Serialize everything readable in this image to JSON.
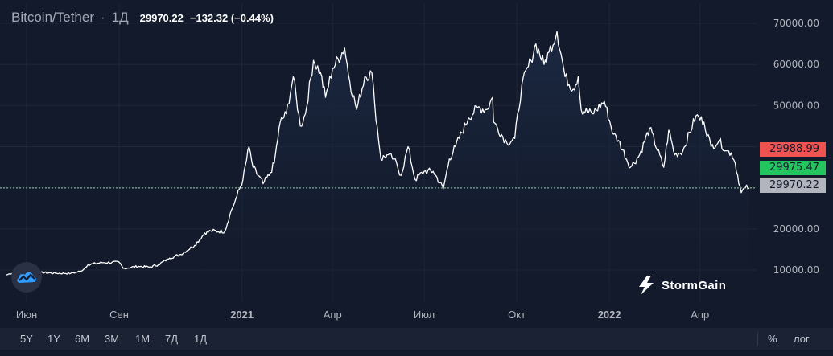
{
  "header": {
    "symbol": "Bitcoin/Tether",
    "interval": "1Д",
    "price": "29970.22",
    "change": "−132.32 (−0.44%)"
  },
  "price_tags": [
    {
      "label": "29988.99",
      "value": 29988.99,
      "color": "#ef5350"
    },
    {
      "label": "29975.47",
      "value": 29975.47,
      "color": "#22c55e"
    },
    {
      "label": "29970.22",
      "value": 29970.22,
      "color": "#b2b5be"
    }
  ],
  "branding": {
    "name": "StormGain"
  },
  "toolbar": {
    "ranges": [
      "5Y",
      "1Y",
      "6M",
      "3M",
      "1M",
      "7Д",
      "1Д"
    ],
    "percent_label": "%",
    "log_label": "лог"
  },
  "colors": {
    "background": "#131a2b",
    "line": "#ffffff",
    "area_top": "#1c2a44",
    "area_bottom": "#131a2b",
    "grid": "#1f2739",
    "axis_text": "#b2b5be",
    "last_price_line": "#8fd0a8"
  },
  "chart_data": {
    "type": "area",
    "title": "Bitcoin/Tether",
    "xlabel": "",
    "ylabel": "",
    "ylim": [
      0,
      72000
    ],
    "grid": true,
    "legend": "none",
    "y_ticks": [
      10000,
      20000,
      30000,
      40000,
      50000,
      60000,
      70000
    ],
    "y_tick_labels": [
      "10000.00",
      "20000.00",
      "30000.00",
      "40000.00",
      "50000.00",
      "60000.00",
      "70000.00"
    ],
    "x_ticks": [
      {
        "date": "2020-06-01",
        "label": "Июн",
        "bold": false
      },
      {
        "date": "2020-09-01",
        "label": "Сен",
        "bold": false
      },
      {
        "date": "2021-01-01",
        "label": "2021",
        "bold": true
      },
      {
        "date": "2021-04-01",
        "label": "Апр",
        "bold": false
      },
      {
        "date": "2021-07-01",
        "label": "Июл",
        "bold": false
      },
      {
        "date": "2021-10-01",
        "label": "Окт",
        "bold": false
      },
      {
        "date": "2022-01-01",
        "label": "2022",
        "bold": true
      },
      {
        "date": "2022-04-01",
        "label": "Апр",
        "bold": false
      }
    ],
    "series": [
      {
        "values": [
          [
            "2020-05-12",
            8800
          ],
          [
            "2020-05-20",
            9500
          ],
          [
            "2020-06-01",
            9500
          ],
          [
            "2020-06-15",
            9400
          ],
          [
            "2020-07-01",
            9200
          ],
          [
            "2020-07-15",
            9200
          ],
          [
            "2020-07-25",
            9700
          ],
          [
            "2020-08-01",
            11300
          ],
          [
            "2020-08-15",
            11800
          ],
          [
            "2020-09-01",
            11900
          ],
          [
            "2020-09-05",
            10400
          ],
          [
            "2020-09-20",
            10900
          ],
          [
            "2020-10-01",
            10700
          ],
          [
            "2020-10-10",
            11300
          ],
          [
            "2020-10-21",
            12900
          ],
          [
            "2020-11-01",
            13800
          ],
          [
            "2020-11-15",
            16000
          ],
          [
            "2020-11-25",
            19000
          ],
          [
            "2020-12-01",
            19500
          ],
          [
            "2020-12-15",
            19400
          ],
          [
            "2020-12-20",
            23500
          ],
          [
            "2020-12-27",
            28000
          ],
          [
            "2021-01-02",
            32000
          ],
          [
            "2021-01-08",
            40000
          ],
          [
            "2021-01-12",
            35000
          ],
          [
            "2021-01-22",
            31000
          ],
          [
            "2021-01-28",
            33000
          ],
          [
            "2021-02-02",
            36000
          ],
          [
            "2021-02-08",
            46000
          ],
          [
            "2021-02-14",
            48000
          ],
          [
            "2021-02-21",
            57000
          ],
          [
            "2021-02-28",
            45000
          ],
          [
            "2021-03-05",
            48000
          ],
          [
            "2021-03-13",
            61000
          ],
          [
            "2021-03-20",
            58000
          ],
          [
            "2021-03-25",
            52000
          ],
          [
            "2021-04-01",
            59000
          ],
          [
            "2021-04-13",
            64000
          ],
          [
            "2021-04-18",
            56000
          ],
          [
            "2021-04-25",
            49000
          ],
          [
            "2021-05-03",
            57000
          ],
          [
            "2021-05-10",
            58000
          ],
          [
            "2021-05-13",
            50000
          ],
          [
            "2021-05-19",
            37000
          ],
          [
            "2021-05-25",
            38000
          ],
          [
            "2021-06-01",
            37000
          ],
          [
            "2021-06-08",
            33000
          ],
          [
            "2021-06-15",
            40000
          ],
          [
            "2021-06-22",
            32000
          ],
          [
            "2021-07-01",
            34000
          ],
          [
            "2021-07-10",
            34000
          ],
          [
            "2021-07-20",
            29800
          ],
          [
            "2021-07-26",
            37000
          ],
          [
            "2021-08-01",
            40000
          ],
          [
            "2021-08-14",
            47000
          ],
          [
            "2021-08-23",
            49500
          ],
          [
            "2021-09-01",
            49000
          ],
          [
            "2021-09-07",
            52000
          ],
          [
            "2021-09-08",
            46000
          ],
          [
            "2021-09-21",
            41000
          ],
          [
            "2021-09-29",
            42000
          ],
          [
            "2021-10-06",
            55000
          ],
          [
            "2021-10-15",
            61000
          ],
          [
            "2021-10-20",
            65000
          ],
          [
            "2021-10-28",
            60000
          ],
          [
            "2021-11-02",
            63000
          ],
          [
            "2021-11-10",
            68000
          ],
          [
            "2021-11-18",
            57000
          ],
          [
            "2021-11-26",
            54000
          ],
          [
            "2021-12-01",
            57000
          ],
          [
            "2021-12-04",
            49000
          ],
          [
            "2021-12-15",
            48000
          ],
          [
            "2021-12-27",
            51000
          ],
          [
            "2022-01-05",
            43000
          ],
          [
            "2022-01-10",
            41500
          ],
          [
            "2022-01-22",
            35000
          ],
          [
            "2022-01-31",
            38000
          ],
          [
            "2022-02-10",
            44500
          ],
          [
            "2022-02-24",
            35000
          ],
          [
            "2022-03-01",
            44000
          ],
          [
            "2022-03-07",
            38000
          ],
          [
            "2022-03-15",
            39000
          ],
          [
            "2022-03-28",
            47500
          ],
          [
            "2022-04-05",
            46000
          ],
          [
            "2022-04-12",
            40000
          ],
          [
            "2022-04-20",
            41500
          ],
          [
            "2022-04-27",
            39000
          ],
          [
            "2022-05-02",
            38500
          ],
          [
            "2022-05-06",
            36000
          ],
          [
            "2022-05-12",
            28800
          ],
          [
            "2022-05-16",
            30000
          ],
          [
            "2022-05-20",
            29970
          ]
        ]
      }
    ]
  }
}
